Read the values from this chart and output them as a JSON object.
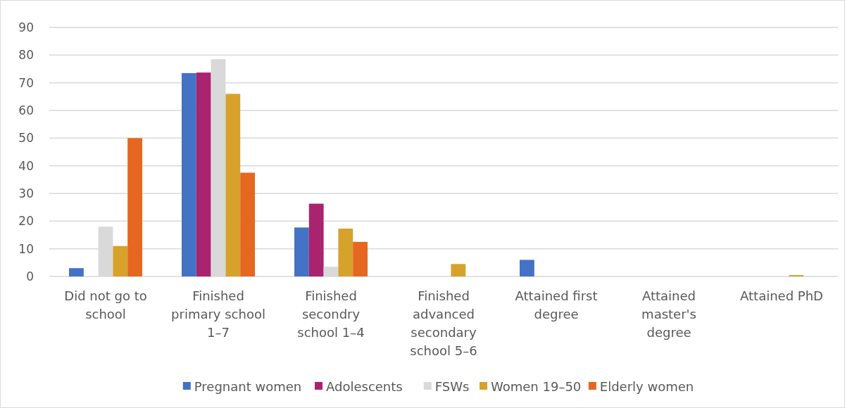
{
  "chart_data": {
    "type": "bar",
    "categories": [
      "Did not go to school",
      "Finished primary school 1–7",
      "Finished secondry school 1–4",
      "Finished advanced secondary school 5–6",
      "Attained first degree",
      "Attained master's degree",
      "Attained PhD"
    ],
    "series": [
      {
        "name": "Pregnant women",
        "color": "#4472c4",
        "values": [
          3,
          73.5,
          17.7,
          0,
          6,
          0,
          0
        ]
      },
      {
        "name": "Adolescents",
        "color": "#a9236f",
        "values": [
          0,
          73.7,
          26.3,
          0,
          0,
          0,
          0
        ]
      },
      {
        "name": "FSWs",
        "color": "#d9d9d9",
        "values": [
          18,
          78.5,
          3.5,
          0,
          0,
          0,
          0
        ]
      },
      {
        "name": "Women 19–50",
        "color": "#d6a22b",
        "values": [
          11,
          66,
          17.3,
          4.5,
          0,
          0,
          0.5
        ]
      },
      {
        "name": "Elderly women",
        "color": "#e56720",
        "values": [
          50,
          37.5,
          12.5,
          0,
          0,
          0,
          0
        ]
      }
    ],
    "ylim": [
      0,
      90
    ],
    "yticks": [
      0,
      10,
      20,
      30,
      40,
      50,
      60,
      70,
      80,
      90
    ],
    "grid": "y",
    "legend": "bottom"
  }
}
